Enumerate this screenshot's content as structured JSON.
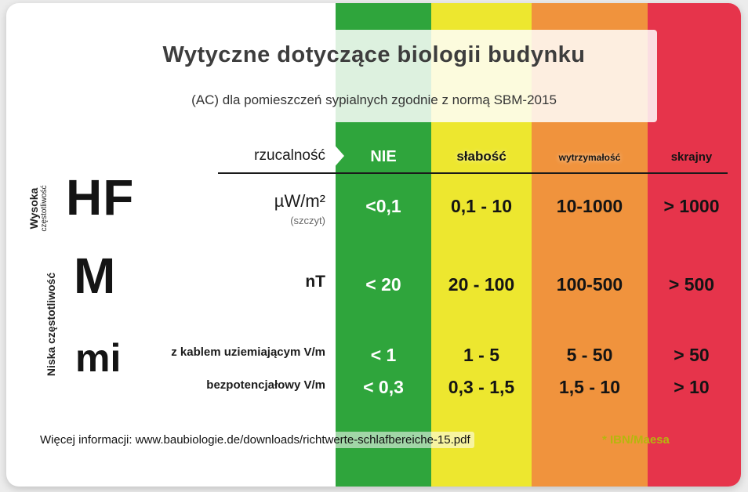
{
  "title": "Wytyczne dotyczące biologii budynku",
  "subtitle": "(AC) dla pomieszczeń sypialnych zgodnie z normą SBM-2015",
  "header": {
    "axis_label": "rzucalność",
    "categories": [
      "NIE",
      "słabość",
      "wytrzymałość",
      "skrajny"
    ]
  },
  "colors": {
    "green": "#2fa53c",
    "yellow": "#ede72f",
    "orange": "#f0933d",
    "red": "#e6344b",
    "credit": "#b6b60e"
  },
  "groups": {
    "hf_symbol": "HF",
    "hf_label_line1": "Wysoka",
    "hf_label_line2": "częstotliwość",
    "m_symbol": "M",
    "mi_symbol": "mi",
    "low_freq_label": "Niska częstotliwość"
  },
  "rows": [
    {
      "unit": "µW/m²",
      "unit_note": "(szczyt)",
      "values": [
        "<0,1",
        "0,1 - 10",
        "10-1000",
        "> 1000"
      ]
    },
    {
      "unit": "nT",
      "values": [
        "< 20",
        "20 - 100",
        "100-500",
        "> 500"
      ]
    },
    {
      "unit": "z kablem uziemiającym V/m",
      "values": [
        "< 1",
        "1 - 5",
        "5 - 50",
        "> 50"
      ]
    },
    {
      "unit": "bezpotencjałowy V/m",
      "values": [
        "< 0,3",
        "0,3 - 1,5",
        "1,5 - 10",
        "> 10"
      ]
    }
  ],
  "footer": {
    "info": "Więcej informacji: www.baubiologie.de/downloads/richtwerte-schlafbereiche-15.pdf",
    "credit": "* IBN/Maesa"
  },
  "chart_data": {
    "type": "table",
    "title": "Wytyczne dotyczące biologii budynku",
    "subtitle": "(AC) dla pomieszczeń sypialnych zgodnie z normą SBM-2015",
    "columns": [
      "rzucalność",
      "NIE",
      "słabość",
      "wytrzymałość",
      "skrajny"
    ],
    "column_colors": {
      "NIE": "#2fa53c",
      "słabość": "#ede72f",
      "wytrzymałość": "#f0933d",
      "skrajny": "#e6344b"
    },
    "rows": [
      {
        "group": "HF",
        "frequency": "Wysoka częstotliwość",
        "measure": "µW/m² (szczyt)",
        "NIE": "<0,1",
        "słabość": "0,1 - 10",
        "wytrzymałość": "10-1000",
        "skrajny": "> 1000"
      },
      {
        "group": "M",
        "frequency": "Niska częstotliwość",
        "measure": "nT",
        "NIE": "< 20",
        "słabość": "20 - 100",
        "wytrzymałość": "100-500",
        "skrajny": "> 500"
      },
      {
        "group": "mi",
        "frequency": "Niska częstotliwość",
        "measure": "z kablem uziemiającym V/m",
        "NIE": "< 1",
        "słabość": "1 - 5",
        "wytrzymałość": "5 - 50",
        "skrajny": "> 50"
      },
      {
        "group": "mi",
        "frequency": "Niska częstotliwość",
        "measure": "bezpotencjałowy V/m",
        "NIE": "< 0,3",
        "słabość": "0,3 - 1,5",
        "wytrzymałość": "1,5 - 10",
        "skrajny": "> 10"
      }
    ],
    "footer": "Więcej informacji: www.baubiologie.de/downloads/richtwerte-schlafbereiche-15.pdf",
    "credit": "* IBN/Maesa"
  }
}
